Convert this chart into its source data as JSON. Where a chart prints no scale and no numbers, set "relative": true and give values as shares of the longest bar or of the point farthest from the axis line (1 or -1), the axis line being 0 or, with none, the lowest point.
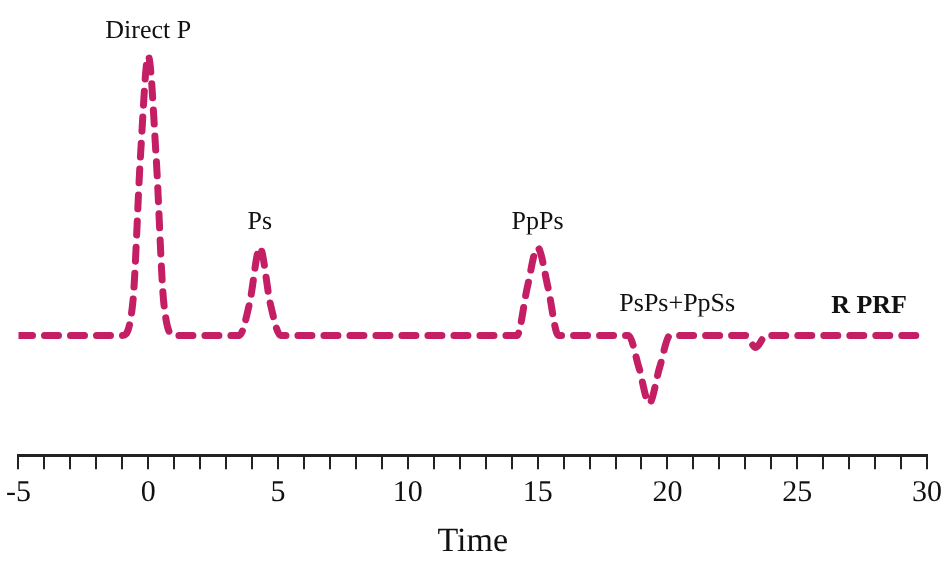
{
  "chart_data": {
    "type": "line",
    "relative": true,
    "xlabel": "Time",
    "xlim": [
      -5,
      30
    ],
    "xticks": [
      -5,
      {
        "value": -4,
        "label": null
      },
      {
        "value": -3,
        "label": null
      },
      {
        "value": -2,
        "label": null
      },
      {
        "value": -1,
        "label": null
      },
      0,
      {
        "value": 1,
        "label": null
      },
      {
        "value": 2,
        "label": null
      },
      {
        "value": 3,
        "label": null
      },
      {
        "value": 4,
        "label": null
      },
      5,
      {
        "value": 6,
        "label": null
      },
      {
        "value": 7,
        "label": null
      },
      {
        "value": 8,
        "label": null
      },
      {
        "value": 9,
        "label": null
      },
      10,
      {
        "value": 11,
        "label": null
      },
      {
        "value": 12,
        "label": null
      },
      {
        "value": 13,
        "label": null
      },
      {
        "value": 14,
        "label": null
      },
      15,
      {
        "value": 16,
        "label": null
      },
      {
        "value": 17,
        "label": null
      },
      {
        "value": 18,
        "label": null
      },
      {
        "value": 19,
        "label": null
      },
      20,
      {
        "value": 21,
        "label": null
      },
      {
        "value": 22,
        "label": null
      },
      {
        "value": 23,
        "label": null
      },
      {
        "value": 24,
        "label": null
      },
      25,
      {
        "value": 26,
        "label": null
      },
      {
        "value": 27,
        "label": null
      },
      {
        "value": 28,
        "label": null
      },
      {
        "value": 29,
        "label": null
      },
      30
    ],
    "grid": false,
    "legend": false,
    "marker": "none",
    "line_style": "dashed",
    "series": [
      {
        "name": "R PRF",
        "color": "#c41e64",
        "x": [
          -5,
          -1,
          -0.6,
          -0.3,
          0,
          0.3,
          0.6,
          1,
          3.5,
          3.9,
          4.3,
          4.7,
          5.1,
          14.2,
          14.6,
          15,
          15.4,
          15.8,
          18.5,
          18.9,
          19.3,
          19.7,
          20.1,
          23,
          23.4,
          23.8,
          30
        ],
        "values": [
          0.3,
          0.3,
          0.38,
          0.75,
          1,
          0.75,
          0.38,
          0.3,
          0.3,
          0.38,
          0.52,
          0.38,
          0.3,
          0.3,
          0.42,
          0.52,
          0.42,
          0.3,
          0.3,
          0.22,
          0.13,
          0.22,
          0.3,
          0.3,
          0.27,
          0.3,
          0.3
        ]
      }
    ],
    "annotations": [
      {
        "text": "Direct P",
        "x": 0,
        "y": 1
      },
      {
        "text": "Ps",
        "x": 4.3,
        "y": 0.52
      },
      {
        "text": "PpPs",
        "x": 15,
        "y": 0.52
      },
      "PsPs+PpSs"
    ]
  }
}
